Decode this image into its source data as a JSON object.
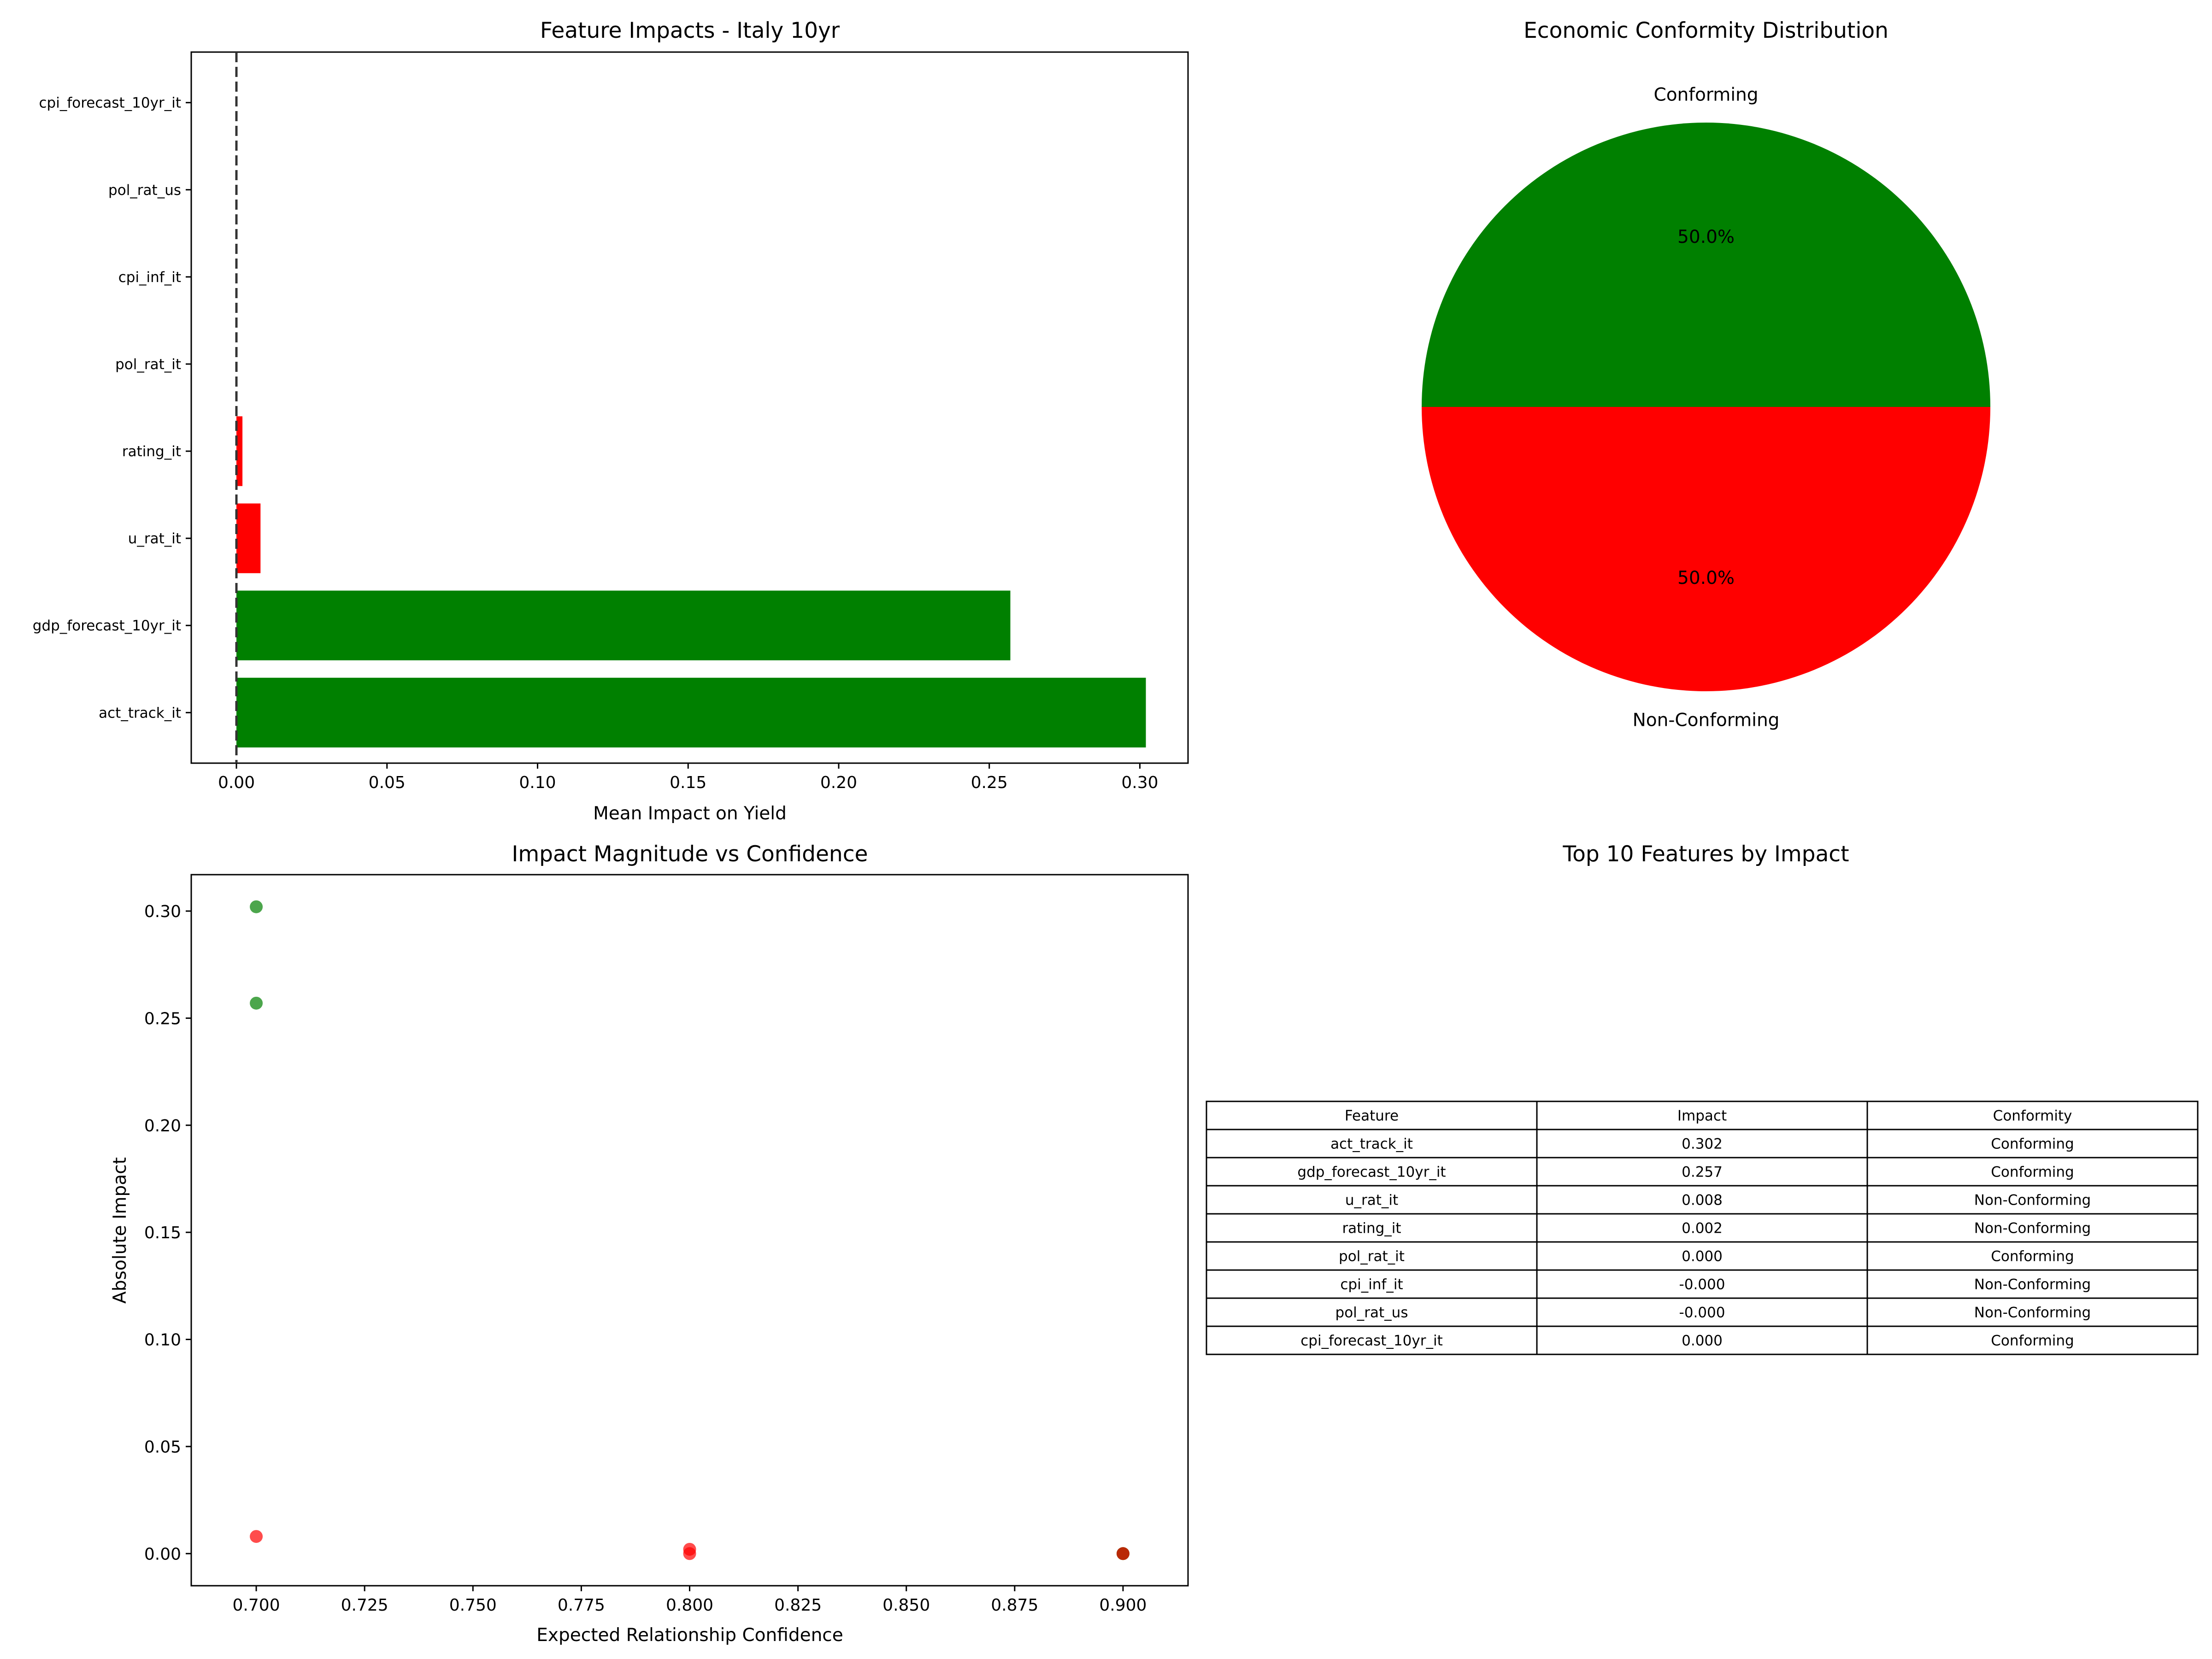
{
  "chart_data": [
    {
      "type": "bar",
      "orientation": "horizontal",
      "title": "Feature Impacts - Italy 10yr",
      "xlabel": "Mean Impact on Yield",
      "ylabel": "",
      "xlim": [
        -0.015,
        0.316
      ],
      "xticks": [
        "0.00",
        "0.05",
        "0.10",
        "0.15",
        "0.20",
        "0.25",
        "0.30"
      ],
      "xtick_values": [
        0,
        0.05,
        0.1,
        0.15,
        0.2,
        0.25,
        0.3
      ],
      "reference_line": 0,
      "categories": [
        "act_track_it",
        "gdp_forecast_10yr_it",
        "u_rat_it",
        "rating_it",
        "pol_rat_it",
        "cpi_inf_it",
        "pol_rat_us",
        "cpi_forecast_10yr_it"
      ],
      "values": [
        0.302,
        0.257,
        0.008,
        0.002,
        0.0,
        -0.0,
        -0.0,
        0.0
      ],
      "colors": [
        "#008000",
        "#008000",
        "#ff0000",
        "#ff0000",
        "#008000",
        "#ff0000",
        "#ff0000",
        "#008000"
      ]
    },
    {
      "type": "pie",
      "title": "Economic Conformity Distribution",
      "labels": [
        "Conforming",
        "Non-Conforming"
      ],
      "values": [
        50.0,
        50.0
      ],
      "pct_labels": [
        "50.0%",
        "50.0%"
      ],
      "colors": [
        "#008000",
        "#ff0000"
      ]
    },
    {
      "type": "scatter",
      "title": "Impact Magnitude vs Confidence",
      "xlabel": "Expected Relationship Confidence",
      "ylabel": "Absolute Impact",
      "xlim": [
        0.685,
        0.915
      ],
      "ylim": [
        -0.015,
        0.317
      ],
      "xticks": [
        "0.700",
        "0.725",
        "0.750",
        "0.775",
        "0.800",
        "0.825",
        "0.850",
        "0.875",
        "0.900"
      ],
      "xtick_values": [
        0.7,
        0.725,
        0.75,
        0.775,
        0.8,
        0.825,
        0.85,
        0.875,
        0.9
      ],
      "yticks": [
        "0.00",
        "0.05",
        "0.10",
        "0.15",
        "0.20",
        "0.25",
        "0.30"
      ],
      "ytick_values": [
        0,
        0.05,
        0.1,
        0.15,
        0.2,
        0.25,
        0.3
      ],
      "points": [
        {
          "x": 0.7,
          "y": 0.302,
          "color": "#008000"
        },
        {
          "x": 0.7,
          "y": 0.257,
          "color": "#008000"
        },
        {
          "x": 0.7,
          "y": 0.008,
          "color": "#ff0000"
        },
        {
          "x": 0.8,
          "y": 0.002,
          "color": "#ff0000"
        },
        {
          "x": 0.8,
          "y": 0.0,
          "color": "#ff0000"
        },
        {
          "x": 0.9,
          "y": 0.0,
          "color": "#008000"
        },
        {
          "x": 0.9,
          "y": 0.0,
          "color": "#008000"
        },
        {
          "x": 0.9,
          "y": 0.0,
          "color": "#ff0000"
        }
      ]
    },
    {
      "type": "table",
      "title": "Top 10 Features by Impact",
      "columns": [
        "Feature",
        "Impact",
        "Conformity"
      ],
      "rows": [
        [
          "act_track_it",
          "0.302",
          "Conforming"
        ],
        [
          "gdp_forecast_10yr_it",
          "0.257",
          "Conforming"
        ],
        [
          "u_rat_it",
          "0.008",
          "Non-Conforming"
        ],
        [
          "rating_it",
          "0.002",
          "Non-Conforming"
        ],
        [
          "pol_rat_it",
          "0.000",
          "Conforming"
        ],
        [
          "cpi_inf_it",
          "-0.000",
          "Non-Conforming"
        ],
        [
          "pol_rat_us",
          "-0.000",
          "Non-Conforming"
        ],
        [
          "cpi_forecast_10yr_it",
          "0.000",
          "Conforming"
        ]
      ]
    }
  ]
}
